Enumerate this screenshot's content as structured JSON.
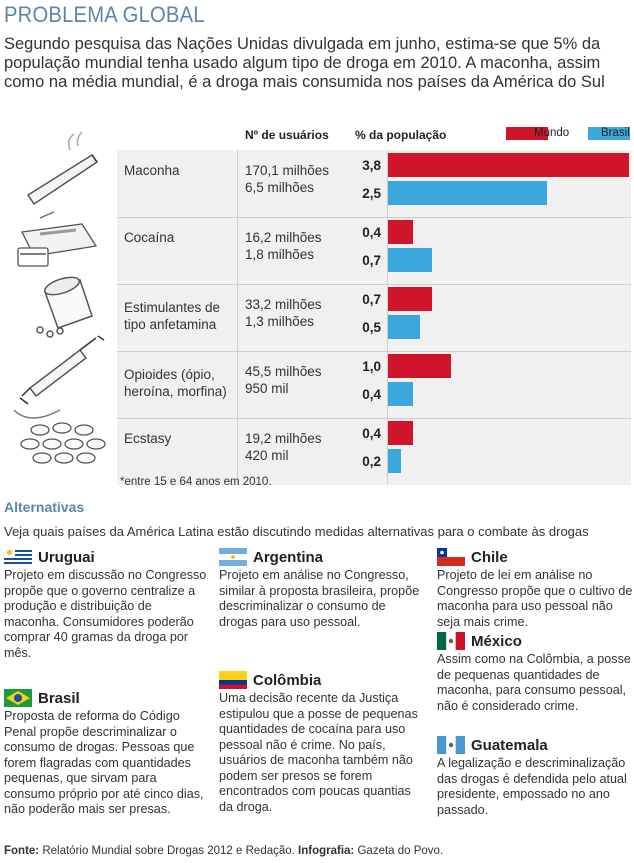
{
  "title": "PROBLEMA GLOBAL",
  "intro": "Segundo pesquisa das Nações Unidas divulgada em junho, estima-se que 5% da população mundial tenha usado algum tipo de droga em 2010. A maconha, assim como na média mundial, é a droga mais consumida nos países da América do Sul",
  "table": {
    "col_users": "Nº de usuários",
    "col_pct": "% da população",
    "legend_world": "Mundo",
    "legend_brazil": "Brasil",
    "footnote": "*entre 15 e 64 anos em 2010."
  },
  "chart_data": {
    "type": "bar",
    "orientation": "horizontal",
    "categories": [
      "Maconha",
      "Cocaína",
      "Estimulantes de tipo anfetamina",
      "Opioides (ópio, heroína, morfina)",
      "Ecstasy"
    ],
    "category_labels": [
      "Maconha",
      "Cocaína",
      "Estimulantes de\ntipo anfetamina",
      "Opioides (ópio,\nheroína, morfina)",
      "Ecstasy"
    ],
    "users_world": [
      "170,1 milhões",
      "16,2 milhões",
      "33,2 milhões",
      "45,5 milhões",
      "19,2 milhões"
    ],
    "users_brazil": [
      "6,5 milhões",
      "1,8 milhões",
      "1,3 milhões",
      "950 mil",
      "420 mil"
    ],
    "series": [
      {
        "name": "Mundo",
        "color": "#d0142a",
        "values": [
          3.8,
          0.4,
          0.7,
          1.0,
          0.4
        ],
        "labels": [
          "3,8",
          "0,4",
          "0,7",
          "1,0",
          "0,4"
        ]
      },
      {
        "name": "Brasil",
        "color": "#3aa8dc",
        "values": [
          2.5,
          0.7,
          0.5,
          0.4,
          0.2
        ],
        "labels": [
          "2,5",
          "0,7",
          "0,5",
          "0,4",
          "0,2"
        ]
      }
    ],
    "xlim": [
      0,
      3.8
    ],
    "ylabel": "% da população"
  },
  "alternatives": {
    "title": "Alternativas",
    "intro": "Veja quais países da América Latina estão discutindo medidas alternativas para o combate às drogas",
    "countries": [
      {
        "name": "Uruguai",
        "text": "Projeto em discussão no Congresso propõe que o governo centralize a produção e distribuição de maconha. Consumidores poderão comprar 40 gramas da droga por mês."
      },
      {
        "name": "Brasil",
        "text": "Proposta de reforma do Código Penal propõe descriminalizar o consumo de drogas. Pessoas que forem flagradas com quantidades pequenas, que sirvam para consumo próprio por até cinco dias, não poderão mais ser presas."
      },
      {
        "name": "Argentina",
        "text": "Projeto em análise no Congresso, similar à proposta brasileira, propõe descriminalizar o consumo de drogas para uso pessoal."
      },
      {
        "name": "Colômbia",
        "text": "Uma decisão recente da Justiça estipulou que a posse de pequenas quantidades de cocaína para uso pessoal não é crime. No país, usuários de maconha também não podem ser presos se forem encontrados com poucas quantias da droga."
      },
      {
        "name": "Chile",
        "text": "Projeto de lei em análise no Congresso propõe que o cultivo de maconha para uso pessoal não seja mais crime."
      },
      {
        "name": "México",
        "text": "Assim como na Colômbia, a posse de pequenas quantidades de maconha, para consumo pessoal, não é considerado crime."
      },
      {
        "name": "Guatemala",
        "text": "A legalização e descriminalização das drogas é defendida pelo atual presidente, empossado no ano passado."
      }
    ]
  },
  "source": {
    "label1": "Fonte:",
    "value1": " Relatório Mundial sobre Drogas 2012 e Redação. ",
    "label2": "Infografia:",
    "value2": " Gazeta do Povo."
  }
}
